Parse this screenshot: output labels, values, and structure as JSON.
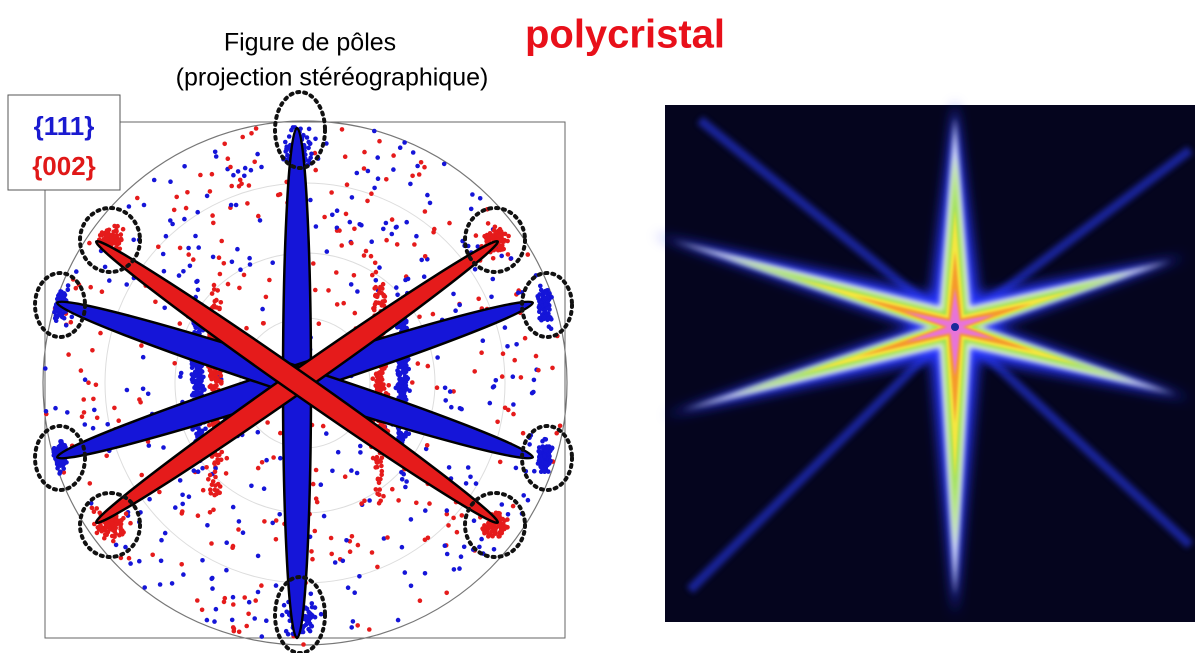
{
  "header": {
    "title": "Figure de pôles",
    "subtitle": "(projection stéréographique)",
    "tag": "polycristal"
  },
  "legend": {
    "items": [
      "{111}",
      "{002}"
    ]
  }
}
